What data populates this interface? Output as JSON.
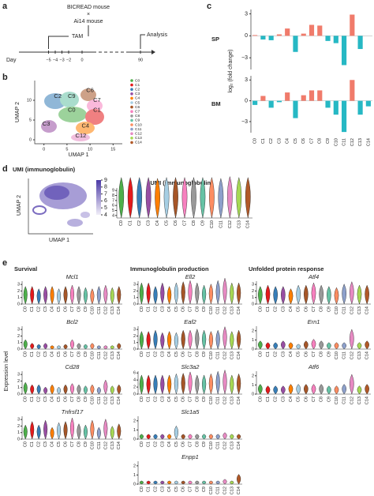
{
  "panel_labels": [
    "a",
    "b",
    "c",
    "d",
    "e"
  ],
  "clusters": {
    "labels": [
      "C0",
      "C1",
      "C2",
      "C3",
      "C4",
      "C5",
      "C6",
      "C7",
      "C8",
      "C9",
      "C10",
      "C11",
      "C12",
      "C13",
      "C14"
    ],
    "colors": [
      "#4daf4a",
      "#e41a1c",
      "#377eb8",
      "#984ea3",
      "#ff7f00",
      "#a6cee3",
      "#a65628",
      "#f781bf",
      "#999999",
      "#66c2a5",
      "#fc8d62",
      "#8da0cb",
      "#e78ac3",
      "#a6d854",
      "#b15928"
    ]
  },
  "timeline": {
    "mouse1": "BICREAD mouse",
    "cross": "×",
    "mouse2": "Ai14 mouse",
    "tam": "TAM",
    "analysis": "Analysis",
    "day_label": "Day",
    "days": [
      {
        "value": -5,
        "label": "−5"
      },
      {
        "value": -4,
        "label": "−4"
      },
      {
        "value": -3,
        "label": "−3"
      },
      {
        "value": -2,
        "label": "−2"
      },
      0,
      90
    ]
  },
  "umap": {
    "type": "scatter",
    "xlabel": "UMAP 1",
    "ylabel": "UMAP 2",
    "xlim": [
      -2,
      17
    ],
    "ylim": [
      -1,
      15
    ],
    "xticks": [
      0,
      5,
      10,
      15
    ],
    "yticks": [
      0,
      5,
      10
    ],
    "cluster_labels": [
      {
        "label": "C2",
        "x": 3,
        "y": 11
      },
      {
        "label": "C9",
        "x": 6,
        "y": 11
      },
      {
        "label": "C6",
        "x": 10,
        "y": 12.5
      },
      {
        "label": "C7",
        "x": 11.5,
        "y": 10
      },
      {
        "label": "C0",
        "x": 6,
        "y": 7.5
      },
      {
        "label": "C1",
        "x": 11.5,
        "y": 7.5
      },
      {
        "label": "C3",
        "x": 0.5,
        "y": 4
      },
      {
        "label": "C4",
        "x": 9,
        "y": 3.5
      },
      {
        "label": "C12",
        "x": 8,
        "y": 1
      }
    ]
  },
  "fold_change": {
    "type": "bar",
    "ylabel": "log₂ (fold change)",
    "ylim": [
      -4.6,
      3.6
    ],
    "yticks": [
      {
        "value": -3,
        "label": "−3"
      },
      0,
      3
    ],
    "positive_color": "#f07b6b",
    "negative_color": "#26b8c4",
    "series": [
      {
        "name": "SP",
        "values": [
          0.1,
          -0.5,
          -0.6,
          0.2,
          1.0,
          -2.2,
          0.3,
          1.5,
          1.4,
          -0.7,
          -1.0,
          -4.0,
          2.9,
          -1.8,
          0.0
        ]
      },
      {
        "name": "BM",
        "values": [
          -0.6,
          0.7,
          -1.0,
          -0.2,
          1.2,
          -2.5,
          0.8,
          1.5,
          1.5,
          -1.0,
          -2.0,
          -4.5,
          3.0,
          -2.0,
          -0.8
        ]
      }
    ]
  },
  "umi": {
    "umap_title": "UMI (immunoglobulin)",
    "umap_xlabel": "UMAP 1",
    "umap_ylabel": "UMAP 2",
    "colorbar_ticks": [
      9,
      8,
      7,
      6,
      5,
      4
    ],
    "colorbar_colors": [
      "#f1eef8",
      "#4b3aa6"
    ],
    "violin": {
      "type": "violin",
      "title": "UMI (immunoglobulin)",
      "ylim": [
        3.5,
        9.5
      ],
      "yticks": [
        4,
        5,
        6,
        7,
        8,
        9
      ],
      "values": [
        8,
        8,
        8,
        8,
        7.9,
        8,
        8,
        8,
        8,
        8,
        8,
        7.9,
        8.1,
        8,
        8
      ]
    }
  },
  "expression": {
    "ylabel": "Expression level",
    "groups": [
      {
        "title": "Survival",
        "genes": [
          {
            "name": "Mcl1",
            "ylim": [
              0,
              3.5
            ],
            "yticks": [
              0,
              1,
              2,
              3
            ],
            "values": [
              1.5,
              1.5,
              1.3,
              1.5,
              1.5,
              1.3,
              1.5,
              1.6,
              1.5,
              1.4,
              1.3,
              1.5,
              1.6,
              1.4,
              1.5
            ]
          },
          {
            "name": "Bcl2",
            "ylim": [
              0,
              3.5
            ],
            "yticks": [
              0,
              1,
              2,
              3
            ],
            "values": [
              0.8,
              0.5,
              0.4,
              0.5,
              0.3,
              0.3,
              0.4,
              0.8,
              0.5,
              0.4,
              0.5,
              0.3,
              0.3,
              0.3,
              0.5
            ]
          },
          {
            "name": "Cd28",
            "ylim": [
              0,
              3.5
            ],
            "yticks": [
              0,
              1,
              2,
              3
            ],
            "values": [
              1.0,
              0.8,
              0.8,
              0.6,
              0.8,
              0.6,
              0.8,
              0.9,
              0.8,
              0.7,
              0.8,
              0.6,
              1.2,
              0.7,
              0.8
            ]
          },
          {
            "name": "Tnfrsf17",
            "ylim": [
              0,
              3.5
            ],
            "yticks": [
              0,
              1,
              2,
              3
            ],
            "values": [
              1.2,
              1.5,
              1.2,
              1.6,
              1.0,
              1.4,
              1.5,
              1.8,
              1.3,
              1.2,
              1.6,
              1.0,
              1.7,
              1.1,
              1.3
            ]
          }
        ]
      },
      {
        "title": "Immunoglobulin production",
        "genes": [
          {
            "name": "Ell2",
            "ylim": [
              0,
              3.5
            ],
            "yticks": [
              0,
              1,
              2,
              3
            ],
            "values": [
              1.8,
              1.8,
              1.5,
              1.8,
              1.5,
              1.8,
              1.9,
              2.0,
              1.8,
              1.6,
              1.7,
              2.0,
              2.2,
              1.8,
              1.8
            ]
          },
          {
            "name": "Eaf2",
            "ylim": [
              0,
              3.5
            ],
            "yticks": [
              0,
              1,
              2,
              3
            ],
            "values": [
              1.5,
              1.5,
              1.6,
              1.4,
              1.5,
              1.4,
              1.6,
              1.6,
              1.7,
              1.6,
              1.5,
              1.6,
              1.9,
              1.5,
              1.6
            ]
          },
          {
            "name": "Slc3a2",
            "ylim": [
              0,
              6.5
            ],
            "yticks": [
              0,
              2,
              4,
              6
            ],
            "values": [
              3,
              3,
              3,
              3,
              3,
              3.2,
              3.3,
              3.5,
              3,
              3,
              3.2,
              3.6,
              3.8,
              3,
              3.2
            ]
          },
          {
            "name": "Slc1a5",
            "ylim": [
              0,
              2.5
            ],
            "yticks": [
              0,
              1,
              2
            ],
            "values": [
              0.3,
              0.3,
              0.3,
              0.3,
              0.3,
              0.8,
              0.3,
              0.3,
              0.3,
              0.3,
              0.3,
              0.3,
              0.4,
              0.3,
              0.3
            ]
          },
          {
            "name": "Enpp1",
            "ylim": [
              0,
              2.5
            ],
            "yticks": [
              0,
              1,
              2
            ],
            "values": [
              0.2,
              0.2,
              0.2,
              0.2,
              0.2,
              0.2,
              0.2,
              0.2,
              0.2,
              0.2,
              0.2,
              0.2,
              0.3,
              0.2,
              0.6
            ]
          }
        ]
      },
      {
        "title": "Unfolded protein response",
        "genes": [
          {
            "name": "Atf4",
            "ylim": [
              0,
              3.5
            ],
            "yticks": [
              0,
              1,
              2,
              3
            ],
            "values": [
              1.5,
              1.6,
              1.5,
              1.5,
              1.3,
              1.6,
              1.6,
              1.8,
              1.6,
              1.5,
              1.4,
              1.7,
              1.9,
              1.6,
              1.6
            ]
          },
          {
            "name": "Ern1",
            "ylim": [
              0,
              2.5
            ],
            "yticks": [
              0,
              1,
              2
            ],
            "values": [
              0.5,
              0.4,
              0.4,
              0.5,
              0.4,
              0.3,
              0.5,
              0.6,
              0.5,
              0.4,
              0.4,
              0.4,
              1.2,
              0.4,
              0.5
            ]
          },
          {
            "name": "Atf6",
            "ylim": [
              0,
              2.5
            ],
            "yticks": [
              0,
              1,
              2
            ],
            "values": [
              0.6,
              0.5,
              0.5,
              0.5,
              0.6,
              0.6,
              0.6,
              0.6,
              0.6,
              0.5,
              0.5,
              0.6,
              1.2,
              0.5,
              0.6
            ]
          }
        ]
      }
    ]
  }
}
